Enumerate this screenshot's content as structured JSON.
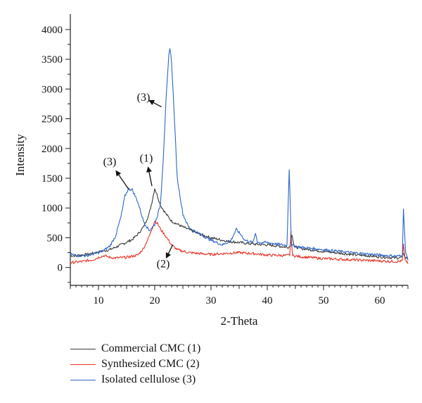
{
  "chart_data": {
    "type": "line",
    "title": "",
    "xlabel": "2-Theta",
    "ylabel": "Intensity",
    "xlim": [
      5,
      65
    ],
    "ylim": [
      -300,
      4200
    ],
    "x_ticks": [
      10,
      20,
      30,
      40,
      50,
      60
    ],
    "y_ticks": [
      0,
      500,
      1000,
      1500,
      2000,
      2500,
      3000,
      3500,
      4000
    ],
    "grid": false,
    "legend_position": "bottom-left, below plot",
    "series": [
      {
        "name": "Commercial CMC (1)",
        "color": "#3a3a3a",
        "points": [
          [
            5,
            200
          ],
          [
            6,
            200
          ],
          [
            8,
            220
          ],
          [
            10,
            260
          ],
          [
            12,
            300
          ],
          [
            14,
            380
          ],
          [
            16,
            470
          ],
          [
            17,
            560
          ],
          [
            18,
            680
          ],
          [
            19,
            900
          ],
          [
            19.5,
            1100
          ],
          [
            20,
            1330
          ],
          [
            20.5,
            1200
          ],
          [
            21,
            1050
          ],
          [
            22,
            900
          ],
          [
            23,
            780
          ],
          [
            25,
            680
          ],
          [
            28,
            560
          ],
          [
            30,
            500
          ],
          [
            33,
            440
          ],
          [
            35,
            420
          ],
          [
            38,
            390
          ],
          [
            40,
            380
          ],
          [
            42,
            360
          ],
          [
            43.5,
            340
          ],
          [
            44,
            350
          ],
          [
            44.4,
            560
          ],
          [
            44.8,
            350
          ],
          [
            46,
            320
          ],
          [
            50,
            270
          ],
          [
            55,
            220
          ],
          [
            60,
            180
          ],
          [
            63,
            160
          ],
          [
            64,
            170
          ],
          [
            64.2,
            250
          ],
          [
            64.5,
            170
          ],
          [
            65,
            150
          ]
        ]
      },
      {
        "name": "Synthesized CMC (2)",
        "color": "#e8352a",
        "points": [
          [
            5,
            80
          ],
          [
            7,
            100
          ],
          [
            9,
            130
          ],
          [
            10,
            170
          ],
          [
            11,
            200
          ],
          [
            12,
            170
          ],
          [
            13,
            160
          ],
          [
            15,
            170
          ],
          [
            17,
            210
          ],
          [
            18,
            320
          ],
          [
            19,
            520
          ],
          [
            19.7,
            700
          ],
          [
            20,
            790
          ],
          [
            20.5,
            740
          ],
          [
            21,
            650
          ],
          [
            22,
            520
          ],
          [
            23,
            380
          ],
          [
            24,
            300
          ],
          [
            26,
            250
          ],
          [
            30,
            220
          ],
          [
            33,
            240
          ],
          [
            35,
            250
          ],
          [
            38,
            230
          ],
          [
            40,
            210
          ],
          [
            43.5,
            200
          ],
          [
            44,
            210
          ],
          [
            44.2,
            590
          ],
          [
            44.5,
            200
          ],
          [
            46,
            180
          ],
          [
            50,
            150
          ],
          [
            55,
            130
          ],
          [
            60,
            110
          ],
          [
            63,
            100
          ],
          [
            64,
            110
          ],
          [
            64.2,
            380
          ],
          [
            64.5,
            140
          ],
          [
            65,
            60
          ]
        ]
      },
      {
        "name": "Isolated cellulose (3)",
        "color": "#2f66c8",
        "points": [
          [
            5,
            230
          ],
          [
            6,
            200
          ],
          [
            8,
            200
          ],
          [
            10,
            250
          ],
          [
            11,
            290
          ],
          [
            12,
            360
          ],
          [
            13,
            520
          ],
          [
            14,
            850
          ],
          [
            14.7,
            1200
          ],
          [
            15.3,
            1320
          ],
          [
            16,
            1310
          ],
          [
            17,
            1100
          ],
          [
            18,
            780
          ],
          [
            19,
            620
          ],
          [
            20,
            720
          ],
          [
            21,
            1050
          ],
          [
            21.5,
            1800
          ],
          [
            22,
            2800
          ],
          [
            22.5,
            3550
          ],
          [
            22.7,
            3700
          ],
          [
            23,
            3450
          ],
          [
            23.5,
            2500
          ],
          [
            24,
            1500
          ],
          [
            25,
            900
          ],
          [
            26,
            680
          ],
          [
            28,
            560
          ],
          [
            30,
            460
          ],
          [
            32,
            380
          ],
          [
            33.5,
            450
          ],
          [
            34.5,
            640
          ],
          [
            35.5,
            530
          ],
          [
            36,
            460
          ],
          [
            37.5,
            420
          ],
          [
            37.9,
            580
          ],
          [
            38.3,
            420
          ],
          [
            40,
            420
          ],
          [
            42,
            390
          ],
          [
            43.5,
            370
          ],
          [
            43.9,
            1660
          ],
          [
            44.3,
            370
          ],
          [
            46,
            340
          ],
          [
            50,
            300
          ],
          [
            55,
            250
          ],
          [
            60,
            210
          ],
          [
            63,
            190
          ],
          [
            64,
            200
          ],
          [
            64.2,
            970
          ],
          [
            64.6,
            250
          ],
          [
            65,
            120
          ]
        ]
      }
    ],
    "annotations": [
      {
        "text": "(3)",
        "x": 12,
        "y": 1720,
        "arrow_to": [
          15.4,
          1310
        ]
      },
      {
        "text": "(1)",
        "x": 18.5,
        "y": 1780,
        "arrow_to": [
          19.5,
          1370
        ]
      },
      {
        "text": "(3)",
        "x": 18,
        "y": 2800,
        "arrow_to": [
          21.2,
          2700
        ]
      },
      {
        "text": "(2)",
        "x": 21.5,
        "y": 0,
        "arrow_to": [
          23.2,
          380
        ]
      }
    ]
  }
}
